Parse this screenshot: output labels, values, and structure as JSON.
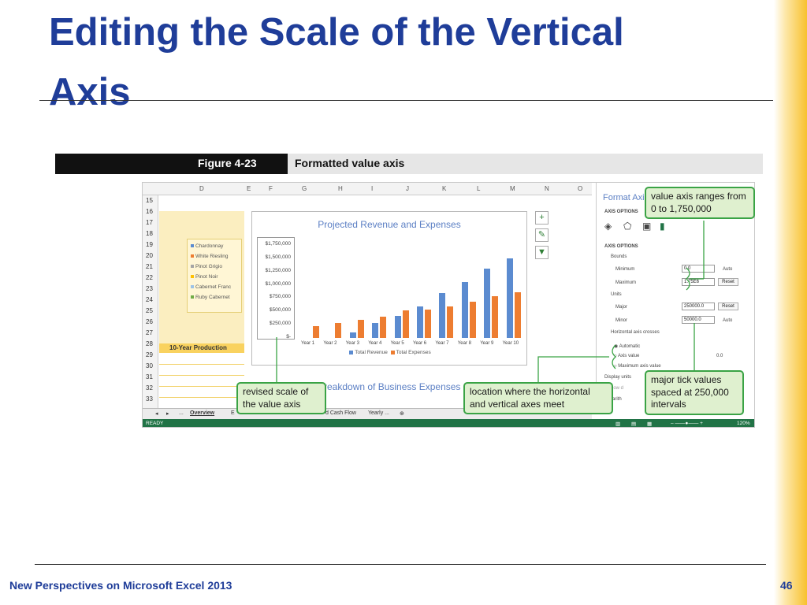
{
  "slide": {
    "title_line1": "Editing the Scale of the Vertical",
    "title_line2": "Axis",
    "footer": "New Perspectives on Microsoft Excel 2013",
    "page_number": "46"
  },
  "figure": {
    "number": "Figure 4-23",
    "caption": "Formatted value axis"
  },
  "sheet": {
    "columns": [
      "D",
      "E",
      "F",
      "G",
      "H",
      "I",
      "J",
      "K",
      "L",
      "M",
      "N",
      "O"
    ],
    "rows": [
      "15",
      "16",
      "17",
      "18",
      "19",
      "20",
      "21",
      "22",
      "23",
      "24",
      "25",
      "26",
      "27",
      "28",
      "29",
      "30",
      "31",
      "32",
      "33"
    ],
    "legend_items": [
      {
        "label": "Chardonnay",
        "color": "#5b8bd0"
      },
      {
        "label": "White Riesling",
        "color": "#ed7d31"
      },
      {
        "label": "Pinot Grigio",
        "color": "#a5a5a5"
      },
      {
        "label": "Pinot Noir",
        "color": "#ffc000"
      },
      {
        "label": "Cabernet Franc",
        "color": "#9dc3e6"
      },
      {
        "label": "Ruby Cabernet",
        "color": "#70ad47"
      }
    ],
    "production_label": "10-Year Production",
    "chart2_title": "Breakdown of Business Expenses",
    "tabs": [
      "Overview",
      "E",
      "d Cash Flow",
      "Yearly ...",
      "⊕"
    ],
    "tab_nav": [
      "◂",
      "▸",
      "..."
    ],
    "status": "READY",
    "zoom": "120%"
  },
  "chart_data": {
    "type": "bar",
    "title": "Projected Revenue and Expenses",
    "categories": [
      "Year 1",
      "Year 2",
      "Year 3",
      "Year 4",
      "Year 5",
      "Year 6",
      "Year 7",
      "Year 8",
      "Year 9",
      "Year 10"
    ],
    "yticks": [
      "$1,750,000",
      "$1,500,000",
      "$1,250,000",
      "$1,000,000",
      "$750,000",
      "$500,000",
      "$250,000",
      "$-"
    ],
    "ylim": [
      0,
      1750000
    ],
    "series": [
      {
        "name": "Total Revenue",
        "color": "#5b8bd0",
        "values": [
          0,
          0,
          100000,
          280000,
          420000,
          600000,
          850000,
          1050000,
          1300000,
          1500000
        ]
      },
      {
        "name": "Total Expenses",
        "color": "#ed7d31",
        "values": [
          230000,
          280000,
          340000,
          400000,
          520000,
          540000,
          590000,
          680000,
          780000,
          860000
        ]
      }
    ]
  },
  "format_pane": {
    "title": "Format Axis",
    "section": "AXIS OPTIONS",
    "subsection": "AXIS OPTIONS",
    "bounds_label": "Bounds",
    "minimum_label": "Minimum",
    "minimum_value": "0.0",
    "minimum_state": "Auto",
    "maximum_label": "Maximum",
    "maximum_value": "1.75E6",
    "reset_label": "Reset",
    "units_label": "Units",
    "major_label": "Major",
    "major_value": "250000.0",
    "minor_label": "Minor",
    "minor_value": "50000.0",
    "minor_state": "Auto",
    "crosses_label": "Horizontal axis crosses",
    "crosses_options": [
      "Automatic",
      "Axis value",
      "Maximum axis value"
    ],
    "axis_value": "0.0",
    "display_units_label": "Display units",
    "show_label": "Show d",
    "log_label": "Logarith"
  },
  "callouts": {
    "value_axis_ranges": "value axis ranges from 0 to 1,750,000",
    "revised_scale": "revised scale of the value axis",
    "location_axes": "location where the horizontal and vertical axes meet",
    "major_tick": "major tick values spaced at 250,000 intervals"
  },
  "colors": {
    "title_blue": "#1f3d99",
    "callout_border": "#3aa345",
    "callout_fill": "#dff0cf",
    "excel_green": "#217346"
  }
}
